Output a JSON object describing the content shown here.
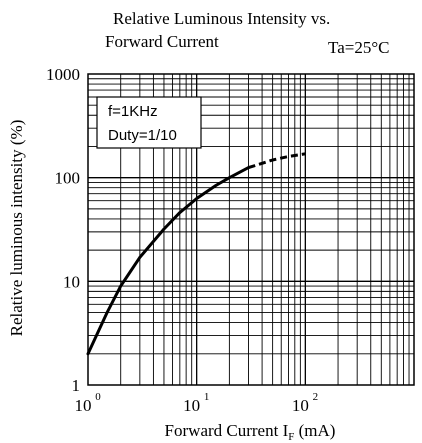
{
  "chart_data": {
    "type": "line",
    "title_line1": "Relative Luminous Intensity vs.",
    "title_line2": "Forward Current",
    "condition": "Ta=25°C",
    "xlabel_main": "Forward Current  I",
    "xlabel_sub": "F",
    "xlabel_unit": "(mA)",
    "ylabel": "Relative luminous intensity (%)",
    "x_scale": "log",
    "y_scale": "log",
    "xlim": [
      1,
      1000
    ],
    "ylim": [
      1,
      1000
    ],
    "grid": true,
    "x_ticks": [
      {
        "base": "10",
        "exp": "0",
        "value": 1
      },
      {
        "base": "10",
        "exp": "1",
        "value": 10
      },
      {
        "base": "10",
        "exp": "2",
        "value": 100
      }
    ],
    "y_ticks": [
      {
        "label": "1",
        "value": 1
      },
      {
        "label": "10",
        "value": 10
      },
      {
        "label": "100",
        "value": 100
      },
      {
        "label": "1000",
        "value": 1000
      }
    ],
    "annotation": {
      "line1": "f=1KHz",
      "line2": "Duty=1/10"
    },
    "series": [
      {
        "style": "solid",
        "x": [
          1,
          1.5,
          2,
          3,
          5,
          7,
          10,
          15,
          20,
          30
        ],
        "y": [
          2,
          5,
          9,
          17,
          32,
          46,
          63,
          84,
          100,
          125
        ]
      },
      {
        "style": "dashed",
        "x": [
          30,
          50,
          70,
          100
        ],
        "y": [
          125,
          148,
          160,
          170
        ]
      }
    ]
  }
}
